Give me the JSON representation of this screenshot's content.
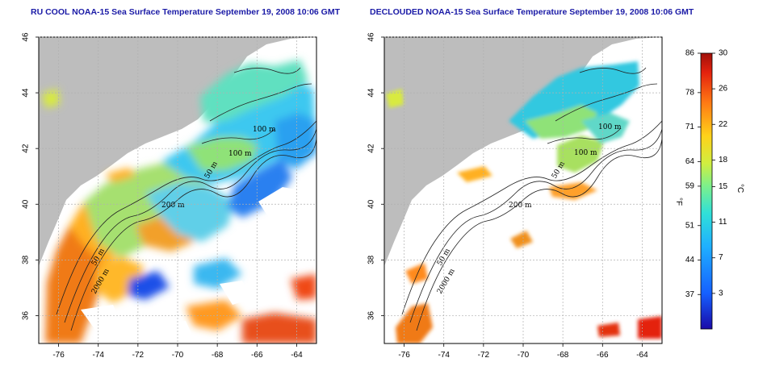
{
  "chart_data": [
    {
      "type": "heatmap",
      "title": "RU COOL NOAA-15 Sea Surface Temperature September 19, 2008 10:06 GMT",
      "x_ticks": [
        -76,
        -74,
        -72,
        -70,
        -68,
        -66,
        -64
      ],
      "y_ticks": [
        36,
        38,
        40,
        42,
        44,
        46
      ],
      "xlim": [
        -77,
        -63
      ],
      "ylim": [
        35,
        46
      ],
      "grid": true,
      "contour_labels": [
        "100 m",
        "100 m",
        "50 m",
        "200 m",
        "50 m",
        "2000 m"
      ]
    },
    {
      "type": "heatmap",
      "title": "DECLOUDED NOAA-15 Sea Surface Temperature September 19, 2008 10:06 GMT",
      "x_ticks": [
        -76,
        -74,
        -72,
        -70,
        -68,
        -66,
        -64
      ],
      "y_ticks": [
        36,
        38,
        40,
        42,
        44,
        46
      ],
      "xlim": [
        -77,
        -63
      ],
      "ylim": [
        35,
        46
      ],
      "grid": true,
      "contour_labels": [
        "100 m",
        "100 m",
        "50 m",
        "200 m",
        "50 m",
        "2000 m"
      ]
    }
  ],
  "colorbar": {
    "fahrenheit_labels": [
      "86",
      "78",
      "71",
      "64",
      "59",
      "51",
      "44",
      "37"
    ],
    "celsius_labels": [
      "30",
      "26",
      "22",
      "18",
      "15",
      "11",
      "7",
      "3"
    ],
    "fahrenheit_unit": "°F",
    "celsius_unit": "°C"
  },
  "colors": {
    "land": "#bdbdbd",
    "cloud": "#ffffff",
    "title": "#1a1aa6"
  }
}
